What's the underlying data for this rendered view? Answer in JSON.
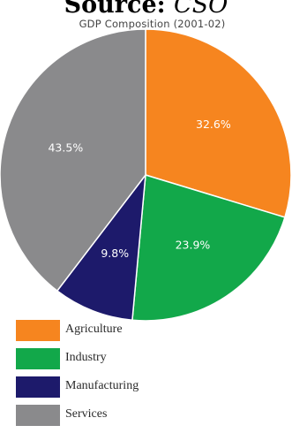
{
  "header": {
    "source_label": "Source:",
    "source_value": "CSO"
  },
  "chart_data": {
    "type": "pie",
    "title": "GDP Composition (2001-02)",
    "slices": [
      {
        "label": "Agriculture",
        "value": 32.6,
        "display": "32.6%",
        "color": "#f6851f"
      },
      {
        "label": "Industry",
        "value": 23.9,
        "display": "23.9%",
        "color": "#12a84a"
      },
      {
        "label": "Manufacturing",
        "value": 9.8,
        "display": "9.8%",
        "color": "#1d1a6b"
      },
      {
        "label": "Services",
        "value": 43.5,
        "display": "43.5%",
        "color": "#8a8a8c"
      }
    ],
    "legend_position": "bottom-left"
  }
}
